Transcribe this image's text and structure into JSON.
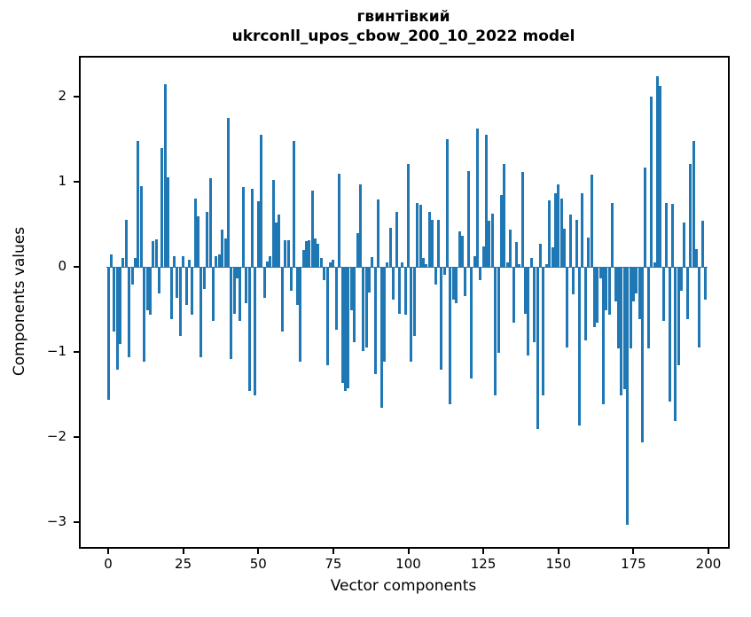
{
  "title": {
    "line1": "гвинтівкий",
    "line2": "ukrconll_upos_cbow_200_10_2022 model"
  },
  "chart_data": {
    "type": "bar",
    "title": "гвинтівкий",
    "subtitle": "ukrconll_upos_cbow_200_10_2022 model",
    "xlabel": "Vector components",
    "ylabel": "Components values",
    "x_is_index": true,
    "n_components": 200,
    "values": [
      -1.55,
      0.15,
      -0.75,
      -1.2,
      -0.9,
      0.1,
      0.55,
      -1.05,
      -0.2,
      0.1,
      1.48,
      0.95,
      -1.1,
      -0.5,
      -0.55,
      0.3,
      0.32,
      -0.3,
      1.4,
      2.15,
      1.05,
      -0.6,
      0.12,
      -0.35,
      -0.8,
      0.13,
      -0.44,
      0.08,
      -0.55,
      0.8,
      0.59,
      -1.05,
      -0.25,
      0.65,
      1.04,
      -0.62,
      0.12,
      0.15,
      0.44,
      0.33,
      1.75,
      -1.07,
      -0.54,
      -0.12,
      -0.62,
      0.94,
      -0.42,
      -1.45,
      0.92,
      -1.5,
      0.77,
      1.55,
      -0.35,
      0.06,
      0.12,
      1.02,
      0.52,
      0.61,
      -0.75,
      0.31,
      0.31,
      -0.27,
      1.48,
      -0.44,
      -1.1,
      0.2,
      0.3,
      0.31,
      0.9,
      0.33,
      0.27,
      0.1,
      -0.15,
      -1.15,
      0.05,
      0.08,
      -0.73,
      1.09,
      -1.35,
      -1.45,
      -1.42,
      -0.5,
      -0.88,
      0.4,
      0.97,
      -0.98,
      -0.94,
      -0.29,
      0.11,
      -1.25,
      0.79,
      -1.65,
      -1.1,
      0.05,
      0.46,
      -0.38,
      0.65,
      -0.54,
      0.05,
      -0.55,
      1.21,
      -1.1,
      -0.8,
      0.75,
      0.73,
      0.1,
      0.03,
      0.65,
      0.55,
      -0.2,
      0.55,
      -1.2,
      -0.08,
      1.5,
      -1.6,
      -0.38,
      -0.42,
      0.42,
      0.36,
      -0.33,
      1.13,
      -1.3,
      0.13,
      1.63,
      -0.15,
      0.24,
      1.55,
      0.54,
      0.63,
      -1.5,
      -1.0,
      0.84,
      1.21,
      0.05,
      0.44,
      -0.65,
      0.29,
      0.03,
      1.11,
      -0.54,
      -1.03,
      0.1,
      -0.88,
      -1.9,
      0.27,
      -1.5,
      0.03,
      0.78,
      0.23,
      0.86,
      0.97,
      0.8,
      0.45,
      -0.94,
      0.61,
      -0.31,
      0.55,
      -1.85,
      0.86,
      -0.85,
      0.34,
      1.08,
      -0.7,
      -0.65,
      -0.12,
      -1.6,
      -0.5,
      -0.55,
      0.75,
      -0.4,
      -0.95,
      -1.5,
      -1.43,
      -3.02,
      -0.95,
      -0.4,
      -0.3,
      -0.6,
      -2.05,
      1.17,
      -0.95,
      2.0,
      0.05,
      2.24,
      2.13,
      -0.63,
      0.75,
      -1.57,
      0.74,
      -1.8,
      -1.15,
      -0.27,
      0.52,
      -0.6,
      1.21,
      1.48,
      0.21,
      -0.94,
      0.54,
      -0.38
    ],
    "bar_color": "#1f77b4",
    "xticks": [
      0,
      25,
      50,
      75,
      100,
      125,
      150,
      175,
      200
    ],
    "yticks": [
      2,
      1,
      0,
      -1,
      -2,
      -3
    ],
    "ytick_labels": [
      "2",
      "1",
      "0",
      "−1",
      "−2",
      "−3"
    ],
    "xlim": [
      -9.7,
      206.2
    ],
    "ylim": [
      -3.29,
      2.48
    ],
    "grid": false,
    "legend_position": "none"
  }
}
